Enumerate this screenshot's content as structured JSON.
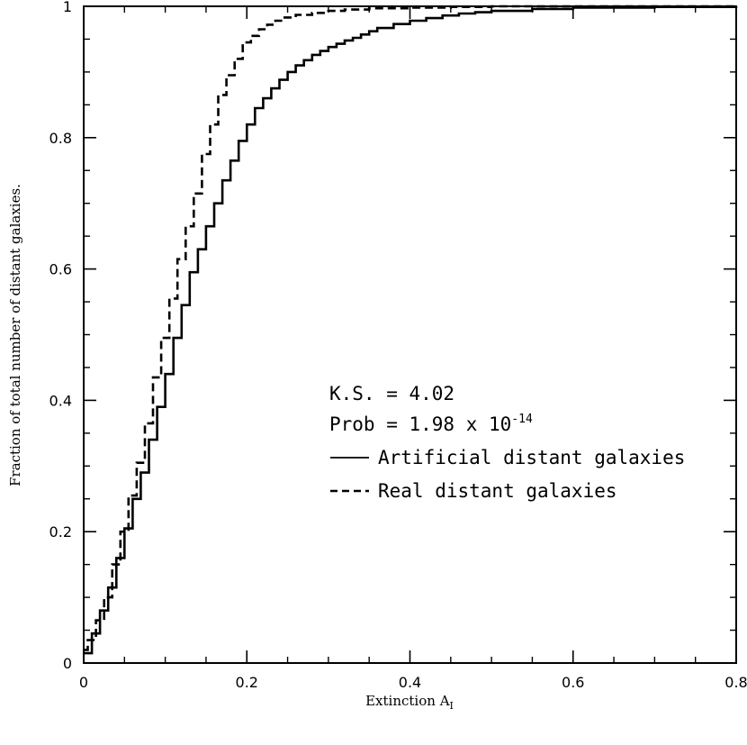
{
  "chart_data": {
    "type": "line",
    "xlabel": "Extinction A",
    "xlabel_subscript": "I",
    "ylabel": "Fraction of total number of distant galaxies.",
    "xlim": [
      0,
      0.8
    ],
    "ylim": [
      0,
      1
    ],
    "x_ticks": [
      {
        "value": 0,
        "label": "0"
      },
      {
        "value": 0.2,
        "label": "0.2"
      },
      {
        "value": 0.4,
        "label": "0.4"
      },
      {
        "value": 0.6,
        "label": "0.6"
      },
      {
        "value": 0.8,
        "label": "0.8"
      }
    ],
    "y_ticks": [
      {
        "value": 0,
        "label": "0"
      },
      {
        "value": 0.2,
        "label": "0.2"
      },
      {
        "value": 0.4,
        "label": "0.4"
      },
      {
        "value": 0.6,
        "label": "0.6"
      },
      {
        "value": 0.8,
        "label": "0.8"
      },
      {
        "value": 1,
        "label": "1"
      }
    ],
    "annotations": {
      "ks": "K.S. = 4.02",
      "prob_prefix": "Prob = 1.98 x 10",
      "prob_exponent": "-14"
    },
    "legend": {
      "placement": "center-right",
      "entries": [
        {
          "label": "Artificial distant galaxies",
          "style": "solid"
        },
        {
          "label": "Real distant galaxies",
          "style": "dashed"
        }
      ]
    },
    "grid": false,
    "series": [
      {
        "name": "Artificial distant galaxies",
        "style": "solid",
        "step": true,
        "x": [
          0,
          0.01,
          0.02,
          0.03,
          0.04,
          0.05,
          0.06,
          0.07,
          0.08,
          0.09,
          0.1,
          0.11,
          0.12,
          0.13,
          0.14,
          0.15,
          0.16,
          0.17,
          0.18,
          0.19,
          0.2,
          0.21,
          0.22,
          0.23,
          0.24,
          0.25,
          0.26,
          0.27,
          0.28,
          0.29,
          0.3,
          0.31,
          0.32,
          0.33,
          0.34,
          0.35,
          0.36,
          0.38,
          0.4,
          0.42,
          0.44,
          0.46,
          0.48,
          0.5,
          0.55,
          0.6,
          0.7,
          0.8
        ],
        "y": [
          0.015,
          0.045,
          0.08,
          0.115,
          0.16,
          0.205,
          0.25,
          0.29,
          0.34,
          0.39,
          0.44,
          0.495,
          0.545,
          0.595,
          0.63,
          0.665,
          0.7,
          0.735,
          0.765,
          0.795,
          0.82,
          0.845,
          0.86,
          0.875,
          0.888,
          0.9,
          0.91,
          0.918,
          0.926,
          0.932,
          0.938,
          0.943,
          0.948,
          0.952,
          0.957,
          0.962,
          0.967,
          0.973,
          0.978,
          0.982,
          0.986,
          0.989,
          0.991,
          0.993,
          0.996,
          0.998,
          0.999,
          1.0
        ]
      },
      {
        "name": "Real distant galaxies",
        "style": "dashed",
        "step": true,
        "x": [
          0,
          0.005,
          0.015,
          0.025,
          0.035,
          0.045,
          0.055,
          0.065,
          0.075,
          0.085,
          0.095,
          0.105,
          0.115,
          0.125,
          0.135,
          0.145,
          0.155,
          0.165,
          0.175,
          0.185,
          0.195,
          0.205,
          0.215,
          0.225,
          0.235,
          0.245,
          0.26,
          0.28,
          0.3,
          0.32,
          0.35,
          0.4,
          0.45,
          0.5,
          0.6,
          0.8
        ],
        "y": [
          0.02,
          0.035,
          0.065,
          0.1,
          0.15,
          0.2,
          0.255,
          0.305,
          0.365,
          0.435,
          0.495,
          0.555,
          0.615,
          0.665,
          0.715,
          0.775,
          0.82,
          0.865,
          0.895,
          0.92,
          0.945,
          0.955,
          0.965,
          0.972,
          0.978,
          0.983,
          0.987,
          0.99,
          0.993,
          0.995,
          0.997,
          0.998,
          0.999,
          1.0,
          1.0,
          1.0
        ]
      }
    ]
  }
}
